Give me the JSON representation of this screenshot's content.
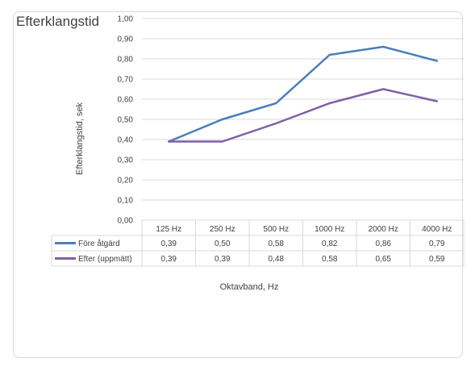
{
  "chart_data": {
    "type": "line",
    "title": "Efterklangstid",
    "xlabel": "Oktavband, Hz",
    "ylabel": "Efterklangstid, sek",
    "ylim": [
      0,
      1.0
    ],
    "ytick_labels": [
      "0,00",
      "0,10",
      "0,20",
      "0,30",
      "0,40",
      "0,50",
      "0,60",
      "0,70",
      "0,80",
      "0,90",
      "1,00"
    ],
    "categories": [
      "125 Hz",
      "250 Hz",
      "500 Hz",
      "1000 Hz",
      "2000 Hz",
      "4000 Hz"
    ],
    "grid": true,
    "legend": "data-table",
    "series": [
      {
        "name": "Före åtgärd",
        "color": "#4a7ebb",
        "values": [
          0.39,
          0.5,
          0.58,
          0.82,
          0.86,
          0.79
        ],
        "labels": [
          "0,39",
          "0,50",
          "0,58",
          "0,82",
          "0,86",
          "0,79"
        ]
      },
      {
        "name": "Efter (uppmätt)",
        "color": "#7f5fa6",
        "values": [
          0.39,
          0.39,
          0.48,
          0.58,
          0.65,
          0.59
        ],
        "labels": [
          "0,39",
          "0,39",
          "0,48",
          "0,58",
          "0,65",
          "0,59"
        ]
      }
    ]
  }
}
